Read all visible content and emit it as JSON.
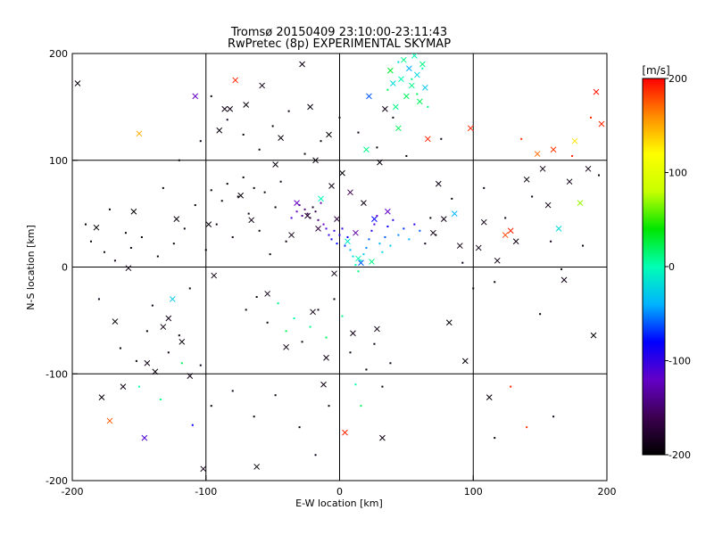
{
  "chart_data": {
    "type": "scatter",
    "title": "Tromsø 20150409 23:10:00-23:11:43",
    "subtitle": "RwPretec (8p) EXPERIMENTAL SKYMAP",
    "xlabel": "E-W location [km]",
    "ylabel": "N-S location [km]",
    "xlim": [
      -200,
      200
    ],
    "ylim": [
      -200,
      200
    ],
    "xticks": [
      "-200",
      "-100",
      "0",
      "100",
      "200"
    ],
    "yticks": [
      "-200",
      "-100",
      "0",
      "100",
      "200"
    ],
    "grid": true,
    "marker_types": [
      "dot",
      "x"
    ],
    "colorbar": {
      "label": "[m/s]",
      "min": -200,
      "max": 200,
      "ticks": [
        "200",
        "100",
        "0",
        "-100",
        "-200"
      ],
      "colormap": [
        "#000000",
        "#3c0050",
        "#6400c8",
        "#0000ff",
        "#00b4ff",
        "#00ffb4",
        "#00e600",
        "#c8ff00",
        "#ffff00",
        "#ff8c00",
        "#ff0000"
      ]
    },
    "points": [
      [
        -196,
        172,
        -195,
        "x"
      ],
      [
        -182,
        37,
        -200,
        "x"
      ],
      [
        -178,
        -122,
        -195,
        "x"
      ],
      [
        -172,
        -144,
        175,
        "x"
      ],
      [
        -168,
        -51,
        -195,
        "x"
      ],
      [
        -162,
        -112,
        -190,
        "x"
      ],
      [
        -158,
        -1,
        -190,
        "x"
      ],
      [
        -154,
        52,
        -200,
        "x"
      ],
      [
        -150,
        125,
        150,
        "x"
      ],
      [
        -146,
        -160,
        -110,
        "x"
      ],
      [
        -144,
        -90,
        -190,
        "x"
      ],
      [
        -138,
        -98,
        -195,
        "x"
      ],
      [
        -132,
        -56,
        -190,
        "x"
      ],
      [
        -128,
        -48,
        -190,
        "x"
      ],
      [
        -125,
        -30,
        -30,
        "x"
      ],
      [
        -122,
        45,
        -195,
        "x"
      ],
      [
        -118,
        -70,
        -195,
        "x"
      ],
      [
        -112,
        -102,
        -190,
        "x"
      ],
      [
        -108,
        160,
        -120,
        "x"
      ],
      [
        -102,
        -189,
        -190,
        "x"
      ],
      [
        -98,
        40,
        -195,
        "x"
      ],
      [
        -94,
        -8,
        -190,
        "x"
      ],
      [
        -90,
        128,
        -195,
        "x"
      ],
      [
        -86,
        148,
        -190,
        "x"
      ],
      [
        -82,
        148,
        -190,
        "x"
      ],
      [
        -78,
        175,
        190,
        "x"
      ],
      [
        -74,
        67,
        -195,
        "x"
      ],
      [
        -70,
        152,
        -195,
        "x"
      ],
      [
        -66,
        44,
        -190,
        "x"
      ],
      [
        -62,
        -187,
        -195,
        "x"
      ],
      [
        -58,
        170,
        -190,
        "x"
      ],
      [
        -54,
        -25,
        -190,
        "x"
      ],
      [
        -48,
        96,
        -195,
        "x"
      ],
      [
        -44,
        121,
        -195,
        "x"
      ],
      [
        -40,
        -75,
        -190,
        "x"
      ],
      [
        -36,
        30,
        -190,
        "x"
      ],
      [
        -32,
        60,
        -120,
        "x"
      ],
      [
        -28,
        190,
        -190,
        "x"
      ],
      [
        -24,
        48,
        -180,
        "x"
      ],
      [
        -22,
        150,
        -195,
        "x"
      ],
      [
        -20,
        -42,
        -190,
        "x"
      ],
      [
        -18,
        100,
        -195,
        "x"
      ],
      [
        -16,
        36,
        -170,
        "x"
      ],
      [
        -14,
        64,
        0,
        "x"
      ],
      [
        -12,
        -110,
        -190,
        "x"
      ],
      [
        -10,
        -85,
        -190,
        "x"
      ],
      [
        -8,
        124,
        -195,
        "x"
      ],
      [
        -6,
        76,
        -190,
        "x"
      ],
      [
        -4,
        -6,
        -190,
        "x"
      ],
      [
        -2,
        45,
        -170,
        "x"
      ],
      [
        2,
        88,
        -195,
        "x"
      ],
      [
        4,
        -155,
        190,
        "x"
      ],
      [
        6,
        24,
        -10,
        "x"
      ],
      [
        8,
        70,
        -160,
        "x"
      ],
      [
        10,
        -62,
        -190,
        "x"
      ],
      [
        12,
        32,
        -130,
        "x"
      ],
      [
        14,
        8,
        0,
        "x"
      ],
      [
        16,
        4,
        -60,
        "x"
      ],
      [
        18,
        60,
        -190,
        "x"
      ],
      [
        20,
        110,
        10,
        "x"
      ],
      [
        22,
        160,
        -60,
        "x"
      ],
      [
        24,
        5,
        10,
        "x"
      ],
      [
        26,
        45,
        -80,
        "x"
      ],
      [
        28,
        -58,
        -190,
        "x"
      ],
      [
        30,
        98,
        -195,
        "x"
      ],
      [
        32,
        -160,
        -190,
        "x"
      ],
      [
        34,
        148,
        -190,
        "x"
      ],
      [
        36,
        52,
        -120,
        "x"
      ],
      [
        38,
        184,
        30,
        "x"
      ],
      [
        40,
        172,
        -20,
        "x"
      ],
      [
        42,
        150,
        10,
        "x"
      ],
      [
        44,
        130,
        20,
        "x"
      ],
      [
        46,
        176,
        0,
        "x"
      ],
      [
        48,
        194,
        10,
        "x"
      ],
      [
        50,
        160,
        20,
        "x"
      ],
      [
        52,
        186,
        -40,
        "x"
      ],
      [
        54,
        170,
        10,
        "x"
      ],
      [
        56,
        198,
        0,
        "x"
      ],
      [
        58,
        180,
        -20,
        "x"
      ],
      [
        60,
        155,
        20,
        "x"
      ],
      [
        62,
        190,
        10,
        "x"
      ],
      [
        64,
        168,
        -30,
        "x"
      ],
      [
        66,
        120,
        190,
        "x"
      ],
      [
        70,
        32,
        -190,
        "x"
      ],
      [
        74,
        78,
        -190,
        "x"
      ],
      [
        78,
        45,
        -190,
        "x"
      ],
      [
        82,
        -52,
        -195,
        "x"
      ],
      [
        86,
        50,
        -40,
        "x"
      ],
      [
        90,
        20,
        -190,
        "x"
      ],
      [
        94,
        -88,
        -195,
        "x"
      ],
      [
        98,
        130,
        190,
        "x"
      ],
      [
        104,
        18,
        -190,
        "x"
      ],
      [
        108,
        42,
        -190,
        "x"
      ],
      [
        112,
        -122,
        -195,
        "x"
      ],
      [
        118,
        6,
        -190,
        "x"
      ],
      [
        124,
        30,
        180,
        "x"
      ],
      [
        128,
        34,
        190,
        "x"
      ],
      [
        132,
        24,
        -190,
        "x"
      ],
      [
        140,
        82,
        -195,
        "x"
      ],
      [
        148,
        106,
        170,
        "x"
      ],
      [
        152,
        92,
        -190,
        "x"
      ],
      [
        156,
        58,
        -190,
        "x"
      ],
      [
        160,
        110,
        185,
        "x"
      ],
      [
        164,
        36,
        -20,
        "x"
      ],
      [
        168,
        -12,
        -190,
        "x"
      ],
      [
        172,
        80,
        -190,
        "x"
      ],
      [
        176,
        118,
        130,
        "x"
      ],
      [
        180,
        60,
        70,
        "x"
      ],
      [
        186,
        92,
        -190,
        "x"
      ],
      [
        190,
        -64,
        -195,
        "x"
      ],
      [
        192,
        164,
        195,
        "x"
      ],
      [
        196,
        134,
        190,
        "x"
      ],
      [
        -190,
        40,
        -200,
        "dot"
      ],
      [
        -186,
        24,
        -195,
        "dot"
      ],
      [
        -180,
        -30,
        -190,
        "dot"
      ],
      [
        -176,
        14,
        -195,
        "dot"
      ],
      [
        -172,
        54,
        -200,
        "dot"
      ],
      [
        -168,
        6,
        -190,
        "dot"
      ],
      [
        -164,
        -76,
        -195,
        "dot"
      ],
      [
        -160,
        32,
        -200,
        "dot"
      ],
      [
        -156,
        18,
        -190,
        "dot"
      ],
      [
        -152,
        -88,
        -195,
        "dot"
      ],
      [
        -148,
        28,
        -200,
        "dot"
      ],
      [
        -144,
        -60,
        -195,
        "dot"
      ],
      [
        -140,
        -36,
        -190,
        "dot"
      ],
      [
        -136,
        10,
        -200,
        "dot"
      ],
      [
        -132,
        74,
        -195,
        "dot"
      ],
      [
        -128,
        -80,
        -190,
        "dot"
      ],
      [
        -124,
        22,
        -195,
        "dot"
      ],
      [
        -120,
        -64,
        -200,
        "dot"
      ],
      [
        -116,
        36,
        -190,
        "dot"
      ],
      [
        -112,
        -20,
        -195,
        "dot"
      ],
      [
        -108,
        58,
        -200,
        "dot"
      ],
      [
        -104,
        -92,
        -190,
        "dot"
      ],
      [
        -100,
        16,
        -195,
        "dot"
      ],
      [
        -96,
        72,
        -200,
        "dot"
      ],
      [
        -92,
        40,
        -190,
        "dot"
      ],
      [
        -88,
        62,
        -195,
        "dot"
      ],
      [
        -84,
        78,
        -200,
        "dot"
      ],
      [
        -80,
        28,
        -190,
        "dot"
      ],
      [
        -76,
        66,
        -195,
        "dot"
      ],
      [
        -72,
        84,
        -200,
        "dot"
      ],
      [
        -68,
        50,
        -190,
        "dot"
      ],
      [
        -64,
        74,
        -195,
        "dot"
      ],
      [
        -60,
        34,
        -200,
        "dot"
      ],
      [
        -56,
        70,
        -190,
        "dot"
      ],
      [
        -52,
        12,
        -195,
        "dot"
      ],
      [
        -48,
        56,
        -200,
        "dot"
      ],
      [
        -44,
        80,
        -190,
        "dot"
      ],
      [
        -40,
        24,
        -195,
        "dot"
      ],
      [
        -36,
        46,
        -110,
        "dot"
      ],
      [
        -32,
        52,
        -120,
        "dot"
      ],
      [
        -30,
        58,
        -130,
        "dot"
      ],
      [
        -28,
        48,
        -140,
        "dot"
      ],
      [
        -26,
        54,
        -150,
        "dot"
      ],
      [
        -24,
        50,
        -160,
        "dot"
      ],
      [
        -22,
        46,
        -170,
        "dot"
      ],
      [
        -20,
        56,
        -180,
        "dot"
      ],
      [
        -18,
        52,
        -170,
        "dot"
      ],
      [
        -16,
        44,
        -150,
        "dot"
      ],
      [
        -14,
        60,
        -130,
        "dot"
      ],
      [
        -12,
        40,
        -120,
        "dot"
      ],
      [
        -10,
        36,
        -110,
        "dot"
      ],
      [
        -8,
        30,
        -100,
        "dot"
      ],
      [
        -6,
        26,
        -90,
        "dot"
      ],
      [
        -4,
        34,
        -100,
        "dot"
      ],
      [
        -2,
        22,
        -80,
        "dot"
      ],
      [
        0,
        30,
        -90,
        "dot"
      ],
      [
        2,
        36,
        -100,
        "dot"
      ],
      [
        4,
        20,
        -70,
        "dot"
      ],
      [
        6,
        28,
        -80,
        "dot"
      ],
      [
        8,
        16,
        -40,
        "dot"
      ],
      [
        10,
        10,
        -20,
        "dot"
      ],
      [
        12,
        2,
        0,
        "dot"
      ],
      [
        14,
        -4,
        10,
        "dot"
      ],
      [
        16,
        6,
        -10,
        "dot"
      ],
      [
        18,
        12,
        -30,
        "dot"
      ],
      [
        20,
        18,
        -50,
        "dot"
      ],
      [
        22,
        26,
        -60,
        "dot"
      ],
      [
        24,
        34,
        -90,
        "dot"
      ],
      [
        26,
        40,
        -110,
        "dot"
      ],
      [
        28,
        48,
        -120,
        "dot"
      ],
      [
        30,
        22,
        -40,
        "dot"
      ],
      [
        32,
        14,
        -20,
        "dot"
      ],
      [
        34,
        28,
        -60,
        "dot"
      ],
      [
        36,
        38,
        -80,
        "dot"
      ],
      [
        38,
        20,
        -30,
        "dot"
      ],
      [
        40,
        44,
        -100,
        "dot"
      ],
      [
        44,
        30,
        -50,
        "dot"
      ],
      [
        48,
        36,
        -70,
        "dot"
      ],
      [
        52,
        26,
        -40,
        "dot"
      ],
      [
        56,
        40,
        -90,
        "dot"
      ],
      [
        60,
        34,
        -60,
        "dot"
      ],
      [
        64,
        22,
        -190,
        "dot"
      ],
      [
        68,
        46,
        -195,
        "dot"
      ],
      [
        72,
        30,
        -190,
        "dot"
      ],
      [
        -70,
        -40,
        -195,
        "dot"
      ],
      [
        -62,
        -28,
        -190,
        "dot"
      ],
      [
        -54,
        -52,
        -195,
        "dot"
      ],
      [
        -46,
        -34,
        10,
        "dot"
      ],
      [
        -40,
        -60,
        20,
        "dot"
      ],
      [
        -34,
        -48,
        0,
        "dot"
      ],
      [
        -28,
        -70,
        -195,
        "dot"
      ],
      [
        -22,
        -56,
        10,
        "dot"
      ],
      [
        -16,
        -40,
        -190,
        "dot"
      ],
      [
        -10,
        -66,
        20,
        "dot"
      ],
      [
        -4,
        -30,
        -195,
        "dot"
      ],
      [
        2,
        -46,
        10,
        "dot"
      ],
      [
        8,
        -80,
        -190,
        "dot"
      ],
      [
        12,
        -110,
        0,
        "dot"
      ],
      [
        16,
        -130,
        20,
        "dot"
      ],
      [
        20,
        -96,
        -195,
        "dot"
      ],
      [
        26,
        -72,
        -190,
        "dot"
      ],
      [
        32,
        -112,
        -195,
        "dot"
      ],
      [
        38,
        -90,
        -190,
        "dot"
      ],
      [
        -120,
        100,
        -195,
        "dot"
      ],
      [
        -104,
        118,
        -190,
        "dot"
      ],
      [
        -96,
        160,
        -195,
        "dot"
      ],
      [
        -84,
        138,
        -190,
        "dot"
      ],
      [
        -72,
        124,
        -195,
        "dot"
      ],
      [
        -60,
        110,
        -190,
        "dot"
      ],
      [
        -50,
        132,
        -195,
        "dot"
      ],
      [
        -38,
        146,
        -190,
        "dot"
      ],
      [
        -26,
        106,
        -195,
        "dot"
      ],
      [
        -14,
        118,
        -190,
        "dot"
      ],
      [
        0,
        140,
        -195,
        "dot"
      ],
      [
        14,
        126,
        -190,
        "dot"
      ],
      [
        28,
        112,
        -195,
        "dot"
      ],
      [
        40,
        140,
        -190,
        "dot"
      ],
      [
        50,
        104,
        -195,
        "dot"
      ],
      [
        54,
        176,
        10,
        "dot"
      ],
      [
        58,
        162,
        20,
        "dot"
      ],
      [
        62,
        186,
        0,
        "dot"
      ],
      [
        66,
        150,
        10,
        "dot"
      ],
      [
        44,
        192,
        -20,
        "dot"
      ],
      [
        36,
        166,
        20,
        "dot"
      ],
      [
        76,
        120,
        -190,
        "dot"
      ],
      [
        84,
        64,
        -195,
        "dot"
      ],
      [
        92,
        4,
        -190,
        "dot"
      ],
      [
        100,
        -20,
        -195,
        "dot"
      ],
      [
        108,
        74,
        -190,
        "dot"
      ],
      [
        116,
        -14,
        -195,
        "dot"
      ],
      [
        124,
        46,
        -190,
        "dot"
      ],
      [
        136,
        120,
        185,
        "dot"
      ],
      [
        144,
        66,
        -190,
        "dot"
      ],
      [
        150,
        -44,
        -195,
        "dot"
      ],
      [
        158,
        24,
        -190,
        "dot"
      ],
      [
        166,
        -2,
        -195,
        "dot"
      ],
      [
        174,
        104,
        190,
        "dot"
      ],
      [
        182,
        20,
        -190,
        "dot"
      ],
      [
        188,
        140,
        190,
        "dot"
      ],
      [
        194,
        86,
        -195,
        "dot"
      ],
      [
        140,
        -150,
        185,
        "dot"
      ],
      [
        116,
        -160,
        -195,
        "dot"
      ],
      [
        128,
        -112,
        190,
        "dot"
      ],
      [
        160,
        -140,
        -190,
        "dot"
      ],
      [
        -150,
        -112,
        0,
        "dot"
      ],
      [
        -134,
        -124,
        10,
        "dot"
      ],
      [
        -118,
        -90,
        20,
        "dot"
      ],
      [
        -110,
        -148,
        -80,
        "dot"
      ],
      [
        -96,
        -130,
        -195,
        "dot"
      ],
      [
        -80,
        -116,
        -190,
        "dot"
      ],
      [
        -64,
        -140,
        -195,
        "dot"
      ],
      [
        -48,
        -120,
        -190,
        "dot"
      ],
      [
        -30,
        -150,
        -195,
        "dot"
      ],
      [
        -18,
        -176,
        -190,
        "dot"
      ],
      [
        -8,
        -130,
        -195,
        "dot"
      ]
    ]
  }
}
